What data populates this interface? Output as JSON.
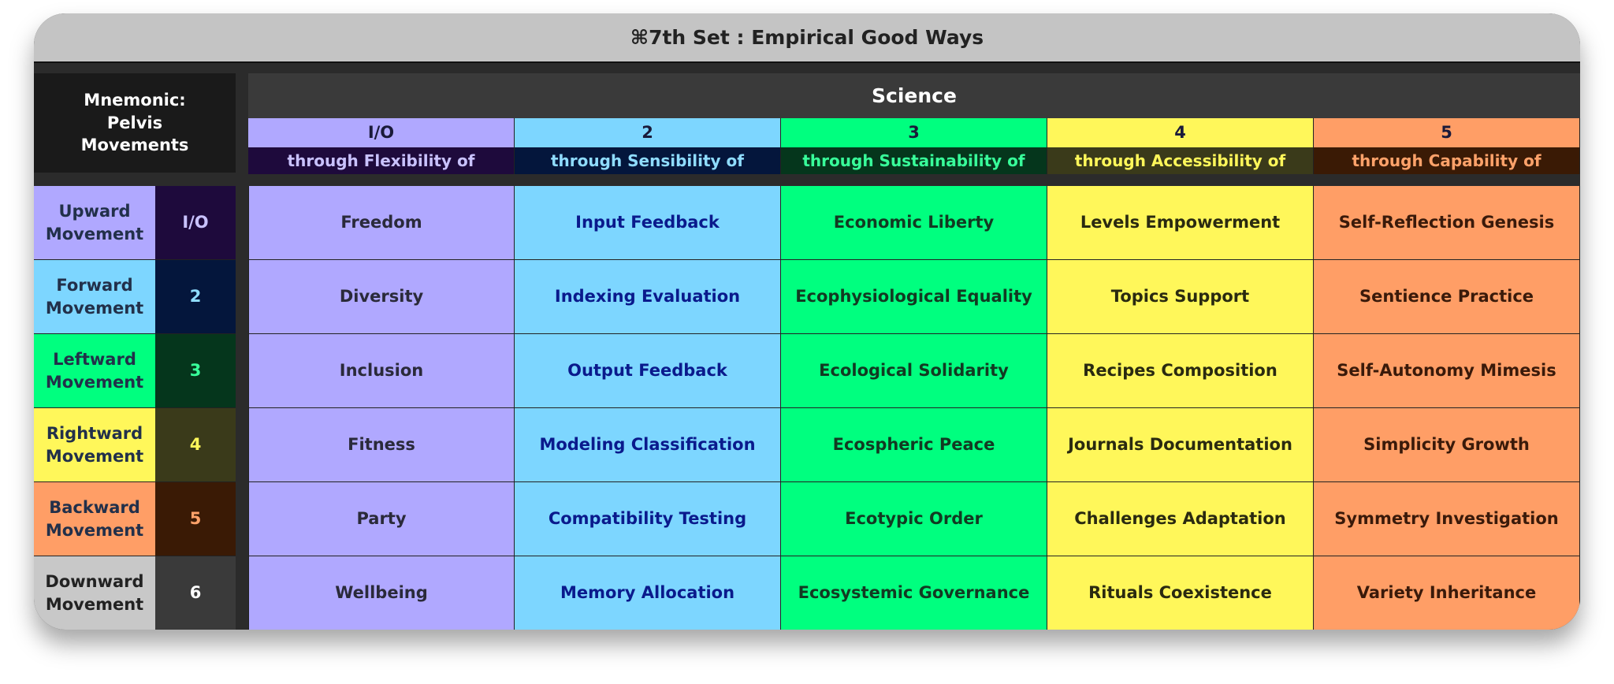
{
  "window": {
    "title": "⌘7th Set : Empirical Good Ways"
  },
  "mnemonic": "Mnemonic: Pelvis Movements",
  "header": "Science",
  "columns": [
    {
      "number": "I/O",
      "subtitle": "through Flexibility of"
    },
    {
      "number": "2",
      "subtitle": "through Sensibility of"
    },
    {
      "number": "3",
      "subtitle": "through Sustainability of"
    },
    {
      "number": "4",
      "subtitle": "through Accessibility of"
    },
    {
      "number": "5",
      "subtitle": "through Capability of"
    }
  ],
  "rows": [
    {
      "label": "Upward Movement",
      "number": "I/O",
      "cells": [
        "Freedom",
        "Input Feedback",
        "Economic Liberty",
        "Levels Empowerment",
        "Self-Reflection Genesis"
      ]
    },
    {
      "label": "Forward Movement",
      "number": "2",
      "cells": [
        "Diversity",
        "Indexing Evaluation",
        "Ecophysiological Equality",
        "Topics Support",
        "Sentience Practice"
      ]
    },
    {
      "label": "Leftward Movement",
      "number": "3",
      "cells": [
        "Inclusion",
        "Output Feedback",
        "Ecological Solidarity",
        "Recipes Composition",
        "Self-Autonomy Mimesis"
      ]
    },
    {
      "label": "Rightward Movement",
      "number": "4",
      "cells": [
        "Fitness",
        "Modeling Classification",
        "Ecospheric Peace",
        "Journals Documentation",
        "Simplicity Growth"
      ]
    },
    {
      "label": "Backward Movement",
      "number": "5",
      "cells": [
        "Party",
        "Compatibility Testing",
        "Ecotypic Order",
        "Challenges Adaptation",
        "Symmetry Investigation"
      ]
    },
    {
      "label": "Downward Movement",
      "number": "6",
      "cells": [
        "Wellbeing",
        "Memory Allocation",
        "Ecosystemic Governance",
        "Rituals Coexistence",
        "Variety Inheritance"
      ]
    }
  ]
}
